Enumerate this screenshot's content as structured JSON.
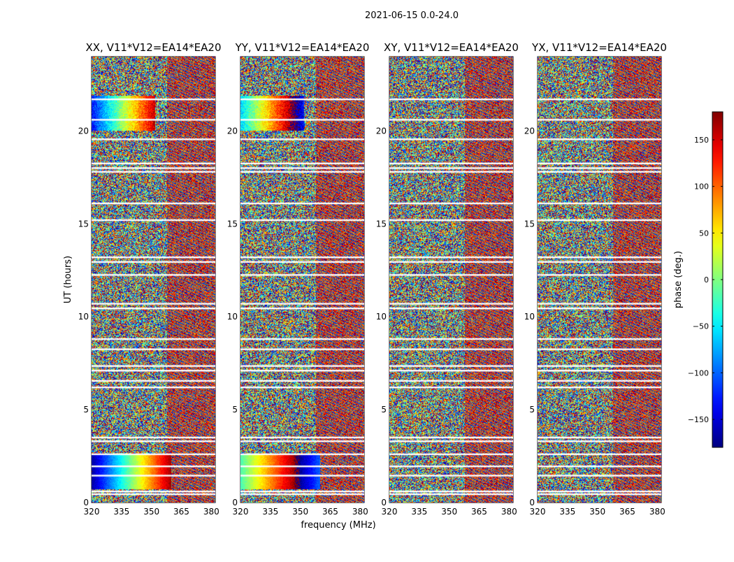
{
  "figure": {
    "suptitle": "2021-06-15 0.0-24.0",
    "ylabel": "UT (hours)",
    "xlabel": "frequency (MHz)",
    "colorbar_label": "phase (deg.)"
  },
  "chart_data": {
    "type": "heatmap",
    "title": "2021-06-15 0.0-24.0",
    "xlabel": "frequency (MHz)",
    "ylabel": "UT (hours)",
    "xlim": [
      320,
      382
    ],
    "ylim": [
      0,
      24
    ],
    "xticks": [
      320,
      335,
      350,
      365,
      380
    ],
    "xtick_labels": [
      "320",
      "335",
      "350",
      "365",
      "380"
    ],
    "yticks": [
      0,
      5,
      10,
      15,
      20
    ],
    "ytick_labels": [
      "0",
      "5",
      "10",
      "15",
      "20"
    ],
    "panels": [
      {
        "name": "XX",
        "title": "XX, V11*V12=EA14*EA20"
      },
      {
        "name": "YY",
        "title": "YY, V11*V12=EA14*EA20"
      },
      {
        "name": "XY",
        "title": "XY, V11*V12=EA14*EA20"
      },
      {
        "name": "YX",
        "title": "YX, V11*V12=EA14*EA20"
      }
    ],
    "colorbar": {
      "label": "phase (deg.)",
      "range": [
        -180,
        180
      ],
      "ticks": [
        150,
        100,
        50,
        0,
        -50,
        -100,
        -150
      ],
      "tick_labels": [
        "150",
        "100",
        "50",
        "0",
        "−50",
        "−100",
        "−150"
      ],
      "colormap": "jet"
    },
    "flagged_ut_hours": [
      0.45,
      0.6,
      1.45,
      1.95,
      2.6,
      3.3,
      3.5,
      6.2,
      6.55,
      7.1,
      7.35,
      8.25,
      8.8,
      10.45,
      10.7,
      12.25,
      12.95,
      13.2,
      15.2,
      16.1,
      17.8,
      18.0,
      18.25,
      19.55,
      20.6,
      21.7
    ]
  }
}
